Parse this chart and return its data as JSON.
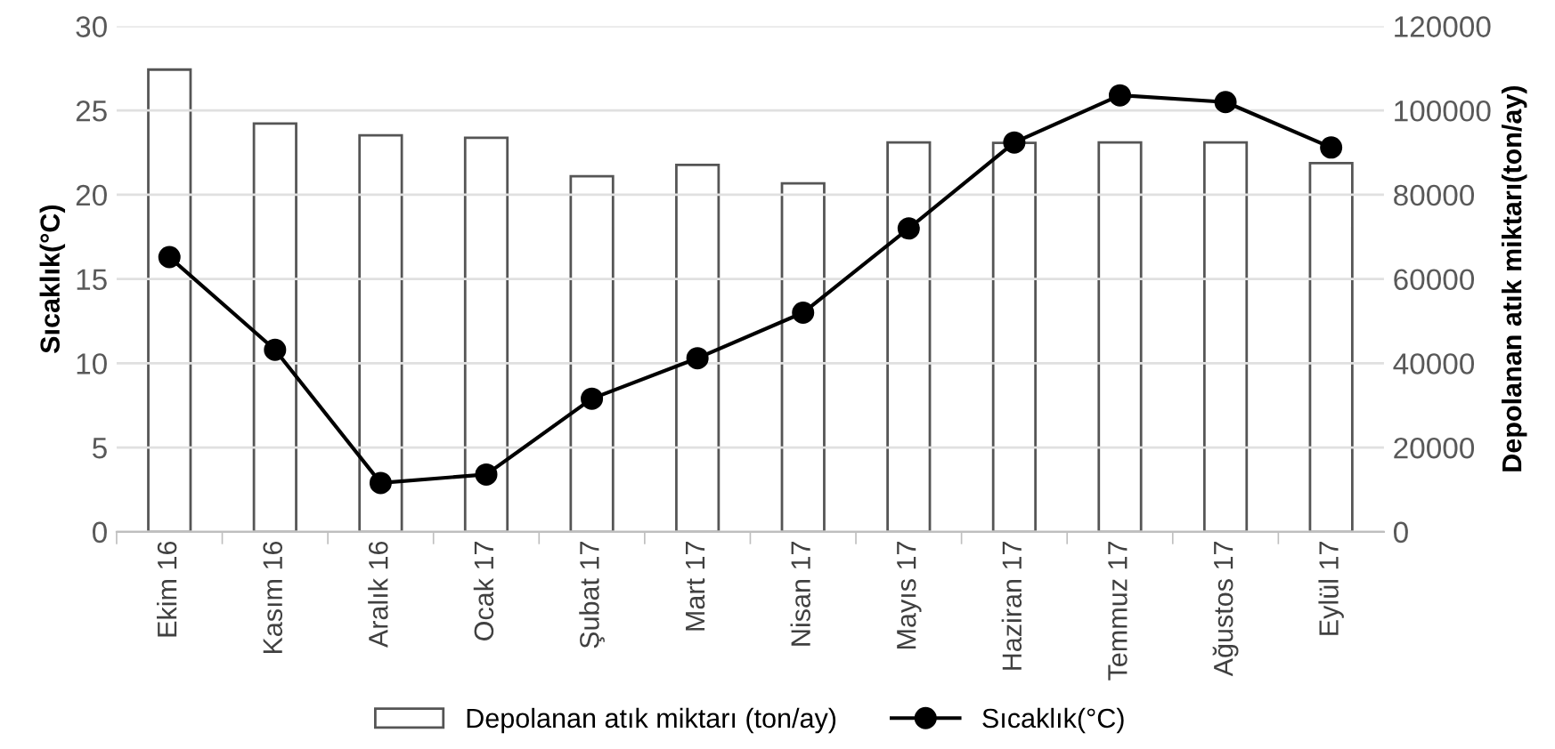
{
  "chart_data": {
    "type": "bar",
    "categories": [
      "Ekim 16",
      "Kasım 16",
      "Aralık 16",
      "Ocak 17",
      "Şubat 17",
      "Mart 17",
      "Nisan 17",
      "Mayıs 17",
      "Haziran 17",
      "Temmuz 17",
      "Ağustos 17",
      "Eylül 17"
    ],
    "series": [
      {
        "name": "Depolanan atık miktarı (ton/ay)",
        "axis": "y2",
        "color": "#ffffff",
        "values": [
          109700,
          96900,
          94100,
          93500,
          84400,
          87100,
          82700,
          92400,
          92300,
          92400,
          92400,
          87500
        ]
      },
      {
        "name": "Sıcaklık(°C)",
        "type": "line",
        "axis": "y",
        "color": "#000000",
        "values": [
          16.3,
          10.8,
          2.9,
          3.4,
          7.9,
          10.3,
          13.0,
          18.0,
          23.1,
          25.9,
          25.5,
          22.8
        ]
      }
    ],
    "ylabel": "Sıcaklık(°C)",
    "y2label": "Depolanan atık miktarı(ton/ay)",
    "ylim": [
      0,
      30
    ],
    "yticks": [
      0,
      5,
      10,
      15,
      20,
      25,
      30
    ],
    "y2lim": [
      0,
      120000
    ],
    "y2ticks": [
      0,
      20000,
      40000,
      60000,
      80000,
      100000,
      120000
    ],
    "grid": "y",
    "legend": "bottom",
    "marker": "circle",
    "line_style": "solid"
  }
}
